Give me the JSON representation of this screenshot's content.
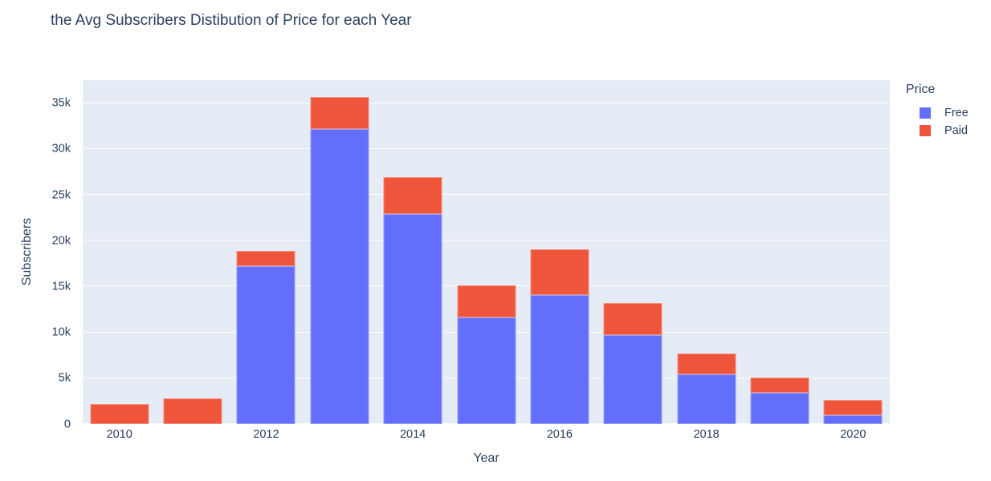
{
  "chart_data": {
    "type": "bar",
    "stacked": true,
    "title": "the Avg Subscribers Distibution of Price for each Year",
    "xlabel": "Year",
    "ylabel": "Subscribers",
    "legend_title": "Price",
    "legend_position": "top-right",
    "grid": true,
    "plot_bg_color": "#E5ECF6",
    "grid_color": "#FFFFFF",
    "text_color": "#2a3f5f",
    "categories": [
      "2010",
      "2011",
      "2012",
      "2013",
      "2014",
      "2015",
      "2016",
      "2017",
      "2018",
      "2019",
      "2020"
    ],
    "series": [
      {
        "name": "Free",
        "color": "#636EFA",
        "values": [
          0,
          0,
          17200,
          32200,
          22900,
          11600,
          14100,
          9700,
          5400,
          3400,
          1000
        ]
      },
      {
        "name": "Paid",
        "color": "#EF553B",
        "values": [
          2200,
          2800,
          1700,
          3500,
          4000,
          3500,
          5000,
          3500,
          2300,
          1700,
          1600
        ]
      }
    ],
    "ylim": [
      0,
      37500
    ],
    "yticks": [
      {
        "value": 0,
        "label": "0"
      },
      {
        "value": 5000,
        "label": "5k"
      },
      {
        "value": 10000,
        "label": "10k"
      },
      {
        "value": 15000,
        "label": "15k"
      },
      {
        "value": 20000,
        "label": "20k"
      },
      {
        "value": 25000,
        "label": "25k"
      },
      {
        "value": 30000,
        "label": "30k"
      },
      {
        "value": 35000,
        "label": "35k"
      }
    ],
    "xticks": [
      "2010",
      "2012",
      "2014",
      "2016",
      "2018",
      "2020"
    ],
    "bar_width_fraction": 0.8
  }
}
